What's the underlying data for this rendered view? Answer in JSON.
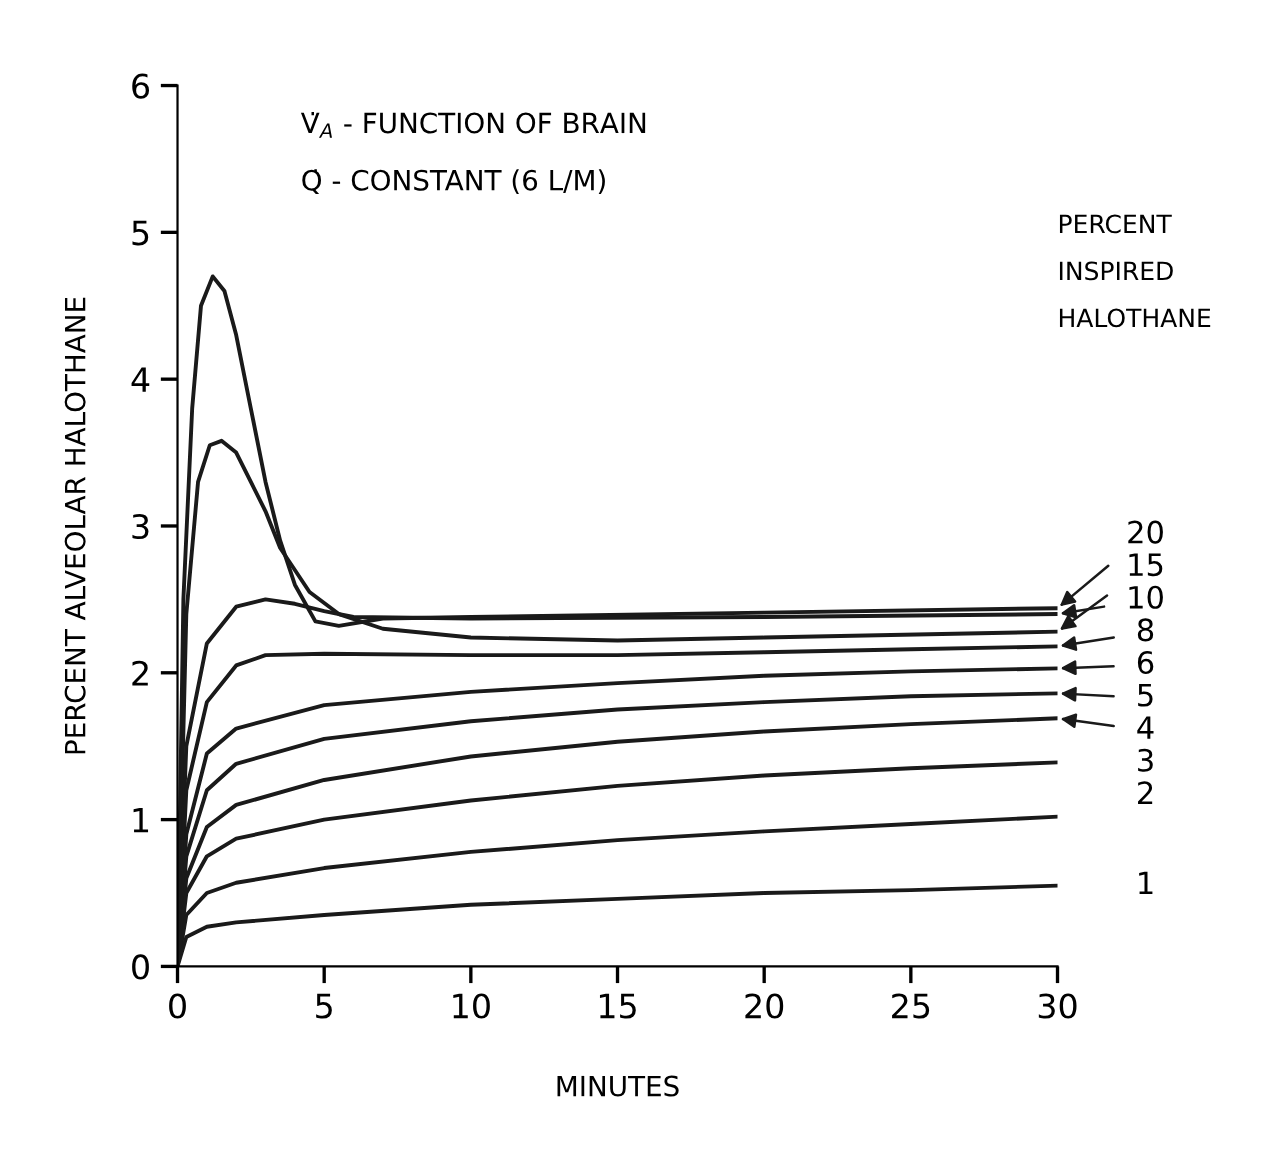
{
  "chart_data": {
    "type": "line",
    "xlabel": "MINUTES",
    "ylabel": "PERCENT ALVEOLAR HALOTHANE",
    "legend_title": "PERCENT\nINSPIRED\nHALOTHANE",
    "annotations": [
      "V̇$_{A}$ - FUNCTION OF BRAIN",
      "Q̇ - CONSTANT (6 L/M)"
    ],
    "xlim": [
      0,
      30
    ],
    "xticks": [
      0,
      5,
      10,
      15,
      20,
      25,
      30
    ],
    "ylim": [
      0,
      6
    ],
    "yticks": [
      0,
      1,
      2,
      3,
      4,
      5,
      6
    ],
    "grid": false,
    "legend": "right",
    "marker": "none",
    "line_style": "solid",
    "series": [
      {
        "name": "20",
        "color": "#1a1a1a",
        "x": [
          0,
          0.2,
          0.5,
          0.8,
          1.2,
          1.6,
          2,
          2.5,
          3,
          3.5,
          4,
          4.7,
          5.5,
          7,
          10,
          20,
          30
        ],
        "values": [
          0,
          2.5,
          3.8,
          4.5,
          4.7,
          4.6,
          4.3,
          3.8,
          3.3,
          2.9,
          2.6,
          2.35,
          2.32,
          2.37,
          2.38,
          2.41,
          2.44
        ]
      },
      {
        "name": "15",
        "color": "#1a1a1a",
        "x": [
          0,
          0.3,
          0.7,
          1.1,
          1.5,
          2,
          2.5,
          3,
          3.5,
          4.5,
          5.5,
          7,
          10,
          15,
          20,
          30
        ],
        "values": [
          0,
          2.4,
          3.3,
          3.55,
          3.58,
          3.5,
          3.3,
          3.1,
          2.85,
          2.55,
          2.4,
          2.3,
          2.24,
          2.22,
          2.24,
          2.28
        ]
      },
      {
        "name": "10",
        "color": "#1a1a1a",
        "x": [
          0,
          0.3,
          1,
          2,
          3,
          4,
          5,
          6,
          10,
          20,
          30
        ],
        "values": [
          0,
          1.5,
          2.2,
          2.45,
          2.5,
          2.47,
          2.42,
          2.38,
          2.37,
          2.38,
          2.4
        ]
      },
      {
        "name": "8",
        "color": "#1a1a1a",
        "x": [
          0,
          0.3,
          1,
          2,
          3,
          5,
          10,
          15,
          20,
          25,
          30
        ],
        "values": [
          0,
          1.2,
          1.8,
          2.05,
          2.12,
          2.13,
          2.12,
          2.12,
          2.14,
          2.16,
          2.18
        ]
      },
      {
        "name": "6",
        "color": "#1a1a1a",
        "x": [
          0,
          0.3,
          1,
          2,
          5,
          10,
          15,
          20,
          25,
          30
        ],
        "values": [
          0,
          0.9,
          1.45,
          1.62,
          1.78,
          1.87,
          1.93,
          1.98,
          2.01,
          2.03
        ]
      },
      {
        "name": "5",
        "color": "#1a1a1a",
        "x": [
          0,
          0.3,
          1,
          2,
          5,
          10,
          15,
          20,
          25,
          30
        ],
        "values": [
          0,
          0.75,
          1.2,
          1.38,
          1.55,
          1.67,
          1.75,
          1.8,
          1.84,
          1.86
        ]
      },
      {
        "name": "4",
        "color": "#1a1a1a",
        "x": [
          0,
          0.3,
          1,
          2,
          5,
          10,
          15,
          20,
          25,
          30
        ],
        "values": [
          0,
          0.6,
          0.95,
          1.1,
          1.27,
          1.43,
          1.53,
          1.6,
          1.65,
          1.69
        ]
      },
      {
        "name": "3",
        "color": "#1a1a1a",
        "x": [
          0,
          0.3,
          1,
          2,
          5,
          10,
          15,
          20,
          25,
          30
        ],
        "values": [
          0,
          0.5,
          0.75,
          0.87,
          1.0,
          1.13,
          1.23,
          1.3,
          1.35,
          1.39
        ]
      },
      {
        "name": "2",
        "color": "#1a1a1a",
        "x": [
          0,
          0.3,
          1,
          2,
          5,
          10,
          15,
          20,
          25,
          30
        ],
        "values": [
          0,
          0.35,
          0.5,
          0.57,
          0.67,
          0.78,
          0.86,
          0.92,
          0.97,
          1.02
        ]
      },
      {
        "name": "1",
        "color": "#1a1a1a",
        "x": [
          0,
          0.3,
          1,
          2,
          5,
          10,
          15,
          20,
          25,
          30
        ],
        "values": [
          0,
          0.2,
          0.27,
          0.3,
          0.35,
          0.42,
          0.46,
          0.5,
          0.52,
          0.55
        ]
      }
    ]
  }
}
